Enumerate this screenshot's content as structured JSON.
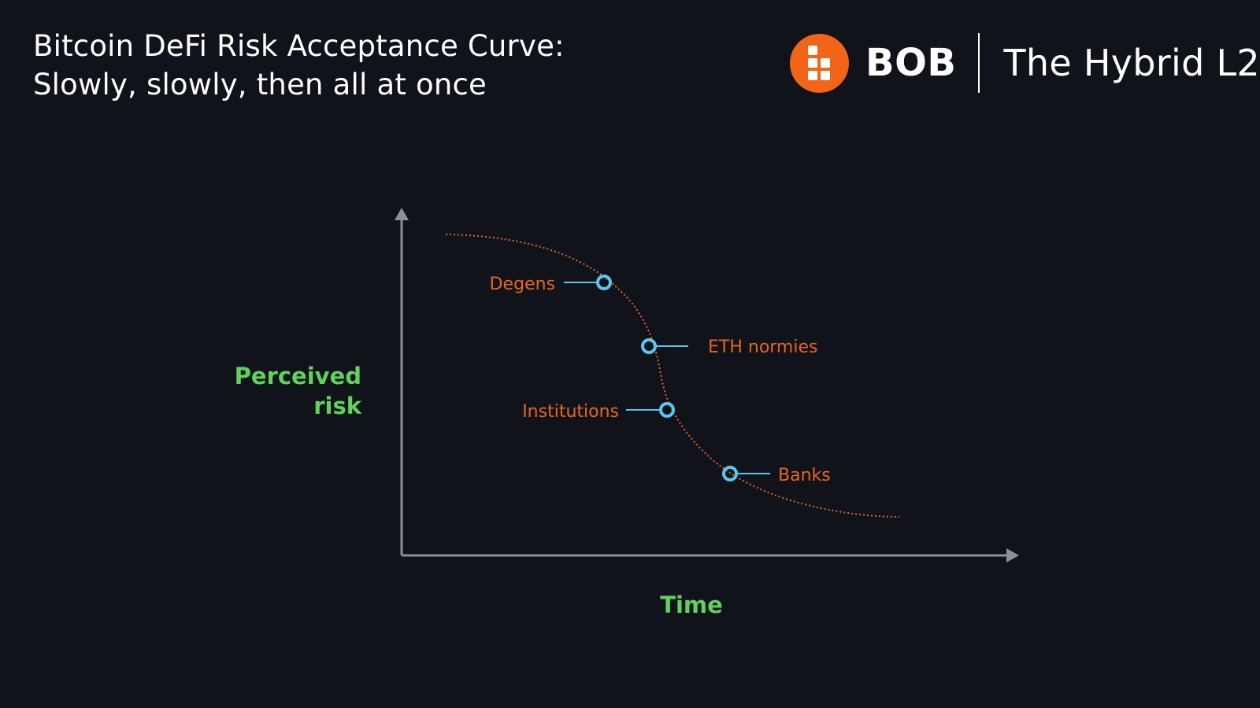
{
  "header": {
    "title_line1": "Bitcoin DeFi Risk Acceptance Curve:",
    "title_line2": "Slowly, slowly, then all at once"
  },
  "brand": {
    "logo_icon": "bob-logo-icon",
    "name": "BOB",
    "tagline": "The Hybrid L2"
  },
  "diagram": {
    "y_axis_label_line1": "Perceived",
    "y_axis_label_line2": "risk",
    "x_axis_label": "Time",
    "points": [
      {
        "label": "Degens"
      },
      {
        "label": "ETH normies"
      },
      {
        "label": "Institutions"
      },
      {
        "label": "Banks"
      }
    ]
  },
  "colors": {
    "background": "#11131b",
    "axis": "#8c8f98",
    "curve": "#e8641f",
    "label_text": "#e8641f",
    "axis_label": "#5fd35c",
    "marker": "#5cc5ec",
    "brand_orange": "#f26418"
  }
}
